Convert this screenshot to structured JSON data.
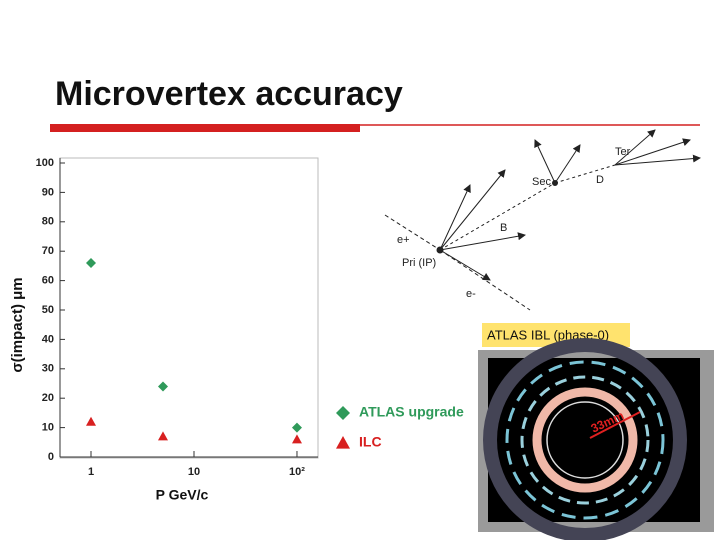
{
  "title": "Microvertex accuracy",
  "chart_data": {
    "type": "scatter",
    "x": [
      1,
      5,
      100
    ],
    "series": [
      {
        "name": "ATLAS upgrade",
        "color": "#2f9a5a",
        "values": [
          66,
          24,
          10
        ]
      },
      {
        "name": "ILC",
        "color": "#d82020",
        "values": [
          12,
          7,
          6
        ]
      }
    ],
    "x_label": "P GeV/c",
    "y_label": "σ(impact) μm",
    "xlim": [
      0.5,
      160
    ],
    "xscale": "log",
    "xticks": [
      1,
      10,
      {
        "value": 100,
        "label": "10²"
      }
    ],
    "ylim": [
      0,
      100
    ],
    "yticks": [
      0,
      10,
      20,
      30,
      40,
      50,
      60,
      70,
      80,
      90,
      100
    ]
  },
  "diagram": {
    "labels": [
      "Sec",
      "Ter",
      "D",
      "B",
      "e+",
      "Pri (IP)",
      "e-"
    ]
  },
  "image": {
    "caption": "ATLAS IBL (phase-0)",
    "scale_label": "33mm"
  }
}
